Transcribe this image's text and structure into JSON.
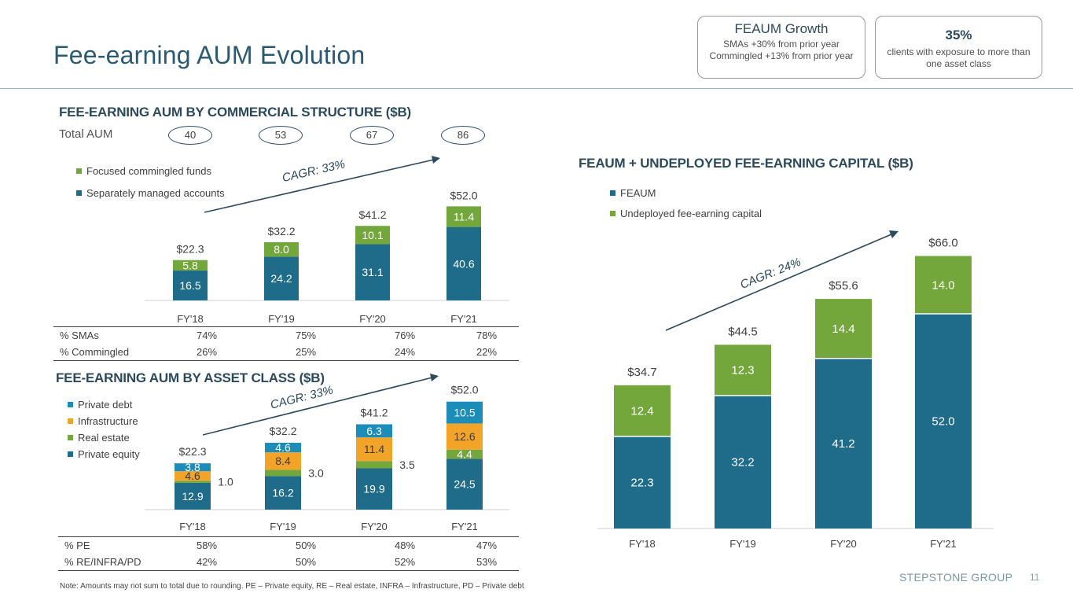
{
  "header": {
    "title": "Fee-earning AUM Evolution",
    "callout1": {
      "heading": "FEAUM Growth",
      "line1": "SMAs +30% from prior year",
      "line2": "Commingled +13% from prior year"
    },
    "callout2": {
      "heading": "35%",
      "text": "clients with exposure to more than one asset class"
    }
  },
  "colors": {
    "blue": "#1f6b8a",
    "green": "#73a63b",
    "orange": "#f2a429",
    "lightblue": "#1b8db8",
    "text": "#404040",
    "navy": "#2b4a5c"
  },
  "chart_data": [
    {
      "type": "bar",
      "title": "FEE-EARNING AUM BY COMMERCIAL STRUCTURE ($B)",
      "total_aum_label": "Total AUM",
      "total_aum": [
        "40",
        "53",
        "67",
        "86"
      ],
      "categories": [
        "FY'18",
        "FY'19",
        "FY'20",
        "FY'21"
      ],
      "series": [
        {
          "name": "Separately managed accounts",
          "values": [
            16.5,
            24.2,
            31.1,
            40.6
          ],
          "labels": [
            "16.5",
            "24.2",
            "31.1",
            "40.6"
          ]
        },
        {
          "name": "Focused commingled funds",
          "values": [
            5.8,
            8.0,
            10.1,
            11.4
          ],
          "labels": [
            "5.8",
            "8.0",
            "10.1",
            "11.4"
          ]
        }
      ],
      "totals": [
        "$22.3",
        "$32.2",
        "$41.2",
        "$52.0"
      ],
      "totals_values": [
        22.3,
        32.2,
        41.2,
        52.0
      ],
      "cagr": "CAGR: 33%",
      "table": [
        {
          "label": "% SMAs",
          "values": [
            "74%",
            "75%",
            "76%",
            "78%"
          ]
        },
        {
          "label": "% Commingled",
          "values": [
            "26%",
            "25%",
            "24%",
            "22%"
          ]
        }
      ]
    },
    {
      "type": "bar",
      "title": "FEE-EARNING AUM BY ASSET CLASS ($B)",
      "categories": [
        "FY'18",
        "FY'19",
        "FY'20",
        "FY'21"
      ],
      "series": [
        {
          "name": "Private equity",
          "values": [
            12.9,
            16.2,
            19.9,
            24.5
          ],
          "labels": [
            "12.9",
            "16.2",
            "19.9",
            "24.5"
          ]
        },
        {
          "name": "Real estate",
          "values": [
            1.0,
            3.0,
            3.5,
            4.4
          ],
          "labels": [
            "1.0",
            "3.0",
            "3.5",
            "4.4"
          ]
        },
        {
          "name": "Infrastructure",
          "values": [
            4.6,
            8.4,
            11.4,
            12.6
          ],
          "labels": [
            "4.6",
            "8.4",
            "11.4",
            "12.6"
          ]
        },
        {
          "name": "Private debt",
          "values": [
            3.8,
            4.6,
            6.3,
            10.5
          ],
          "labels": [
            "3.8",
            "4.6",
            "6.3",
            "10.5"
          ]
        }
      ],
      "totals": [
        "$22.3",
        "$32.2",
        "$41.2",
        "$52.0"
      ],
      "totals_values": [
        22.3,
        32.2,
        41.2,
        52.0
      ],
      "cagr": "CAGR: 33%",
      "table": [
        {
          "label": "% PE",
          "values": [
            "58%",
            "50%",
            "48%",
            "47%"
          ]
        },
        {
          "label": "% RE/INFRA/PD",
          "values": [
            "42%",
            "50%",
            "52%",
            "53%"
          ]
        }
      ]
    },
    {
      "type": "bar",
      "title": "FEAUM + UNDEPLOYED FEE-EARNING CAPITAL ($B)",
      "categories": [
        "FY'18",
        "FY'19",
        "FY'20",
        "FY'21"
      ],
      "series": [
        {
          "name": "FEAUM",
          "values": [
            22.3,
            32.2,
            41.2,
            52.0
          ],
          "labels": [
            "22.3",
            "32.2",
            "41.2",
            "52.0"
          ]
        },
        {
          "name": "Undeployed fee-earning capital",
          "values": [
            12.4,
            12.3,
            14.4,
            14.0
          ],
          "labels": [
            "12.4",
            "12.3",
            "14.4",
            "14.0"
          ]
        }
      ],
      "totals": [
        "$34.7",
        "$44.5",
        "$55.6",
        "$66.0"
      ],
      "totals_values": [
        34.7,
        44.5,
        55.6,
        66.0
      ],
      "cagr": "CAGR: 24%"
    }
  ],
  "footer": {
    "note": "Note: Amounts may not sum to total due to rounding. PE – Private equity, RE – Real estate, INFRA – Infrastructure, PD – Private debt",
    "brand": "STEPSTONE GROUP",
    "page": "11"
  }
}
